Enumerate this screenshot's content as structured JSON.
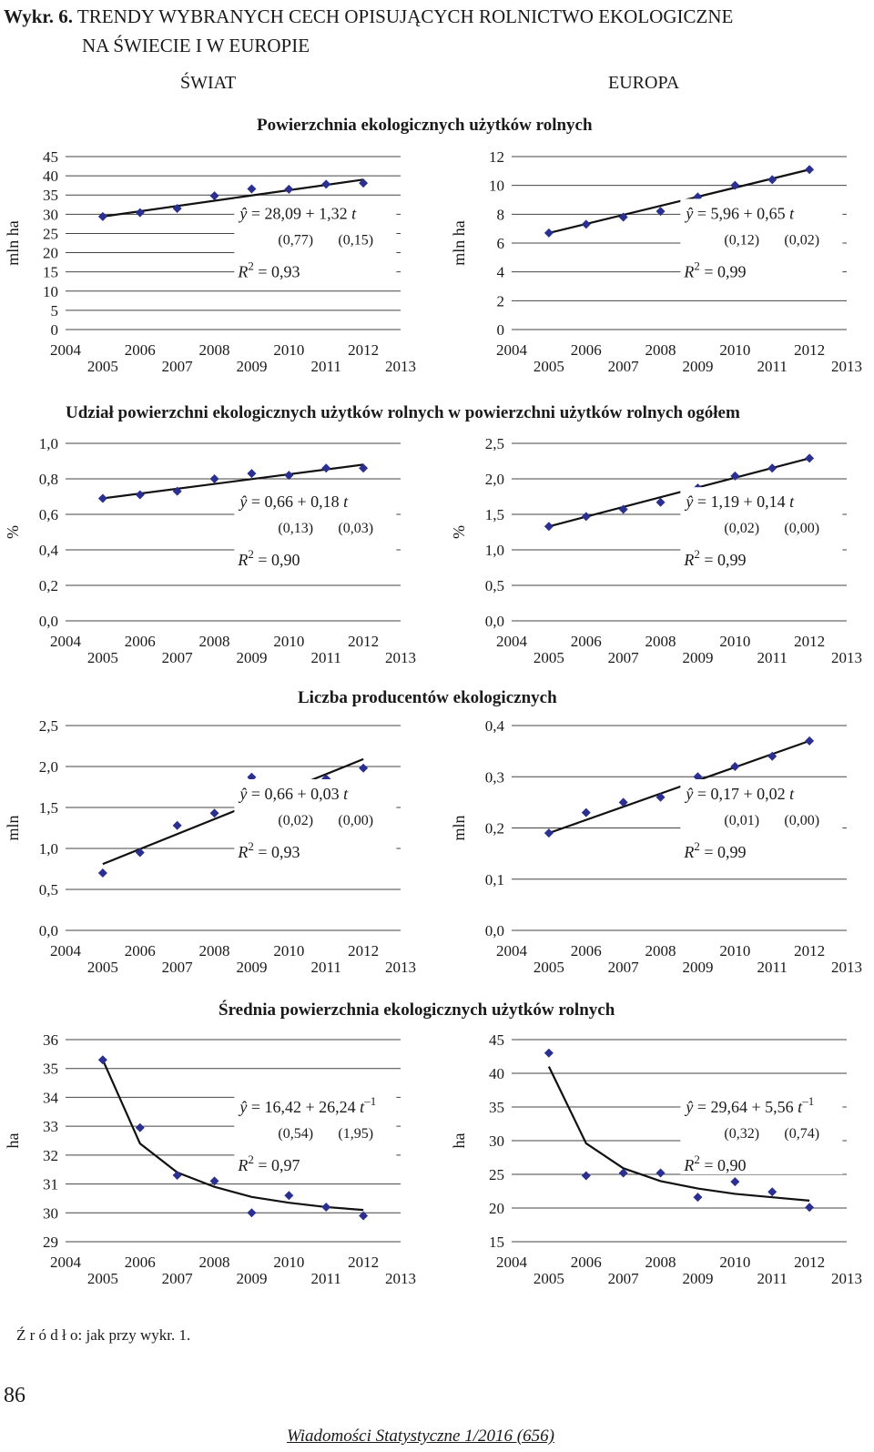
{
  "figure": {
    "label": "Wykr. 6.",
    "title_line1": "TRENDY WYBRANYCH CECH OPISUJĄCYCH ROLNICTWO EKOLOGICZNE",
    "title_line2": "NA ŚWIECIE I W EUROPIE"
  },
  "regions": {
    "world": "ŚWIAT",
    "europe": "EUROPA"
  },
  "sections": [
    "Powierzchnia ekologicznych użytków rolnych",
    "Udział powierzchni ekologicznych użytków rolnych w powierzchni użytków rolnych ogółem",
    "Liczba producentów ekologicznych",
    "Średnia powierzchnia ekologicznych użytków rolnych"
  ],
  "source_note": "Ź r ó d ł o: jak przy wykr. 1.",
  "page_number": "86",
  "journal": "Wiadomości Statystyczne 1/2016 (656)",
  "colors": {
    "marker": "#2b2f8f",
    "line": "#111111",
    "grid": "#444444"
  },
  "chart_data": [
    {
      "id": "area_world",
      "type": "scatter",
      "trend": "linear",
      "ylabel": "mln ha",
      "ylim": [
        0,
        45
      ],
      "yticks": [
        0,
        5,
        10,
        15,
        20,
        25,
        30,
        35,
        40,
        45
      ],
      "ytick_labels": [
        "0",
        "5",
        "10",
        "15",
        "20",
        "25",
        "30",
        "35",
        "40",
        "45"
      ],
      "x": [
        2005,
        2006,
        2007,
        2008,
        2009,
        2010,
        2011,
        2012
      ],
      "values": [
        29.4,
        30.4,
        31.5,
        34.8,
        36.6,
        36.5,
        37.8,
        38.1
      ],
      "trend_values": [
        29.4,
        39.0
      ],
      "equation": {
        "y": "= 28,09 + 1,32",
        "var": "t",
        "exp": "",
        "se1": "(0,77)",
        "se2": "(0,15)",
        "r2": "= 0,93"
      },
      "xlabels_top": [
        "2004",
        "2006",
        "2008",
        "2010",
        "2012"
      ],
      "xlabels_bottom": [
        "2005",
        "2007",
        "2009",
        "2011",
        "2013"
      ]
    },
    {
      "id": "area_europe",
      "type": "scatter",
      "trend": "linear",
      "ylabel": "mln ha",
      "ylim": [
        0,
        12
      ],
      "yticks": [
        0,
        2,
        4,
        6,
        8,
        10,
        12
      ],
      "ytick_labels": [
        "0",
        "2",
        "4",
        "6",
        "8",
        "10",
        "12"
      ],
      "x": [
        2005,
        2006,
        2007,
        2008,
        2009,
        2010,
        2011,
        2012
      ],
      "values": [
        6.7,
        7.3,
        7.8,
        8.2,
        9.2,
        10.0,
        10.4,
        11.1
      ],
      "trend_values": [
        6.7,
        11.1
      ],
      "equation": {
        "y": "= 5,96 + 0,65",
        "var": "t",
        "exp": "",
        "se1": "(0,12)",
        "se2": "(0,02)",
        "r2": "= 0,99"
      },
      "xlabels_top": [
        "2004",
        "2006",
        "2008",
        "2010",
        "2012"
      ],
      "xlabels_bottom": [
        "2005",
        "2007",
        "2009",
        "2011",
        "2013"
      ]
    },
    {
      "id": "share_world",
      "type": "scatter",
      "trend": "linear",
      "ylabel": "%",
      "ylim": [
        0,
        1.0
      ],
      "yticks": [
        0,
        0.2,
        0.4,
        0.6,
        0.8,
        1.0
      ],
      "ytick_labels": [
        "0,0",
        "0,2",
        "0,4",
        "0,6",
        "0,8",
        "1,0"
      ],
      "x": [
        2005,
        2006,
        2007,
        2008,
        2009,
        2010,
        2011,
        2012
      ],
      "values": [
        0.69,
        0.71,
        0.73,
        0.8,
        0.83,
        0.82,
        0.86,
        0.86
      ],
      "trend_values": [
        0.69,
        0.88
      ],
      "equation": {
        "y": "= 0,66 + 0,18",
        "var": "t",
        "exp": "",
        "se1": "(0,13)",
        "se2": "(0,03)",
        "r2": "= 0,90"
      },
      "xlabels_top": [
        "2004",
        "2006",
        "2008",
        "2010",
        "2012"
      ],
      "xlabels_bottom": [
        "2005",
        "2007",
        "2009",
        "2011",
        "2013"
      ]
    },
    {
      "id": "share_europe",
      "type": "scatter",
      "trend": "linear",
      "ylabel": "%",
      "ylim": [
        0,
        2.5
      ],
      "yticks": [
        0,
        0.5,
        1.0,
        1.5,
        2.0,
        2.5
      ],
      "ytick_labels": [
        "0,0",
        "0,5",
        "1,0",
        "1,5",
        "2,0",
        "2,5"
      ],
      "x": [
        2005,
        2006,
        2007,
        2008,
        2009,
        2010,
        2011,
        2012
      ],
      "values": [
        1.33,
        1.47,
        1.57,
        1.67,
        1.87,
        2.04,
        2.15,
        2.29
      ],
      "trend_values": [
        1.33,
        2.29
      ],
      "equation": {
        "y": "= 1,19 + 0,14",
        "var": "t",
        "exp": "",
        "se1": "(0,02)",
        "se2": "(0,00)",
        "r2": "= 0,99"
      },
      "xlabels_top": [
        "2004",
        "2006",
        "2008",
        "2010",
        "2012"
      ],
      "xlabels_bottom": [
        "2005",
        "2007",
        "2009",
        "2011",
        "2013"
      ]
    },
    {
      "id": "producers_world",
      "type": "scatter",
      "trend": "linear",
      "ylabel": "mln",
      "ylim": [
        0,
        2.5
      ],
      "yticks": [
        0,
        0.5,
        1.0,
        1.5,
        2.0,
        2.5
      ],
      "ytick_labels": [
        "0,0",
        "0,5",
        "1,0",
        "1,5",
        "2,0",
        "2,5"
      ],
      "x": [
        2005,
        2006,
        2007,
        2008,
        2009,
        2010,
        2011,
        2012
      ],
      "values": [
        0.7,
        0.95,
        1.28,
        1.43,
        1.87,
        1.63,
        1.85,
        1.98
      ],
      "trend_values": [
        0.81,
        2.09
      ],
      "equation": {
        "y": "= 0,66 + 0,03",
        "var": "t",
        "exp": "",
        "se1": "(0,02)",
        "se2": "(0,00)",
        "r2": "= 0,93"
      },
      "xlabels_top": [
        "2004",
        "2006",
        "2008",
        "2010",
        "2012"
      ],
      "xlabels_bottom": [
        "2005",
        "2007",
        "2009",
        "2011",
        "2013"
      ]
    },
    {
      "id": "producers_europe",
      "type": "scatter",
      "trend": "linear",
      "ylabel": "mln",
      "ylim": [
        0,
        0.4
      ],
      "yticks": [
        0,
        0.1,
        0.2,
        0.3,
        0.4
      ],
      "ytick_labels": [
        "0,0",
        "0,1",
        "0,2",
        "0,3",
        "0,4"
      ],
      "x": [
        2005,
        2006,
        2007,
        2008,
        2009,
        2010,
        2011,
        2012
      ],
      "values": [
        0.19,
        0.23,
        0.25,
        0.26,
        0.3,
        0.32,
        0.34,
        0.37
      ],
      "trend_values": [
        0.19,
        0.37
      ],
      "equation": {
        "y": "= 0,17 + 0,02",
        "var": "t",
        "exp": "",
        "se1": "(0,01)",
        "se2": "(0,00)",
        "r2": "= 0,99"
      },
      "xlabels_top": [
        "2004",
        "2006",
        "2008",
        "2010",
        "2012"
      ],
      "xlabels_bottom": [
        "2005",
        "2007",
        "2009",
        "2011",
        "2013"
      ]
    },
    {
      "id": "avg_area_world",
      "type": "scatter",
      "trend": "reciprocal",
      "ylabel": "ha",
      "ylim": [
        29,
        36
      ],
      "yticks": [
        29,
        30,
        31,
        32,
        33,
        34,
        35,
        36
      ],
      "ytick_labels": [
        "29",
        "30",
        "31",
        "32",
        "33",
        "34",
        "35",
        "36"
      ],
      "x": [
        2005,
        2006,
        2007,
        2008,
        2009,
        2010,
        2011,
        2012
      ],
      "values": [
        35.3,
        32.95,
        31.3,
        31.1,
        30.0,
        30.6,
        30.2,
        29.9
      ],
      "trend_values": [
        35.3,
        32.4,
        31.4,
        30.9,
        30.55,
        30.35,
        30.2,
        30.1
      ],
      "equation": {
        "y": "= 16,42 + 26,24",
        "var": "t",
        "exp": "–1",
        "se1": "(0,54)",
        "se2": "(1,95)",
        "r2": "= 0,97"
      },
      "xlabels_top": [
        "2004",
        "2006",
        "2008",
        "2010",
        "2012"
      ],
      "xlabels_bottom": [
        "2005",
        "2007",
        "2009",
        "2011",
        "2013"
      ]
    },
    {
      "id": "avg_area_europe",
      "type": "scatter",
      "trend": "reciprocal",
      "ylabel": "ha",
      "ylim": [
        15,
        45
      ],
      "yticks": [
        15,
        20,
        25,
        30,
        35,
        40,
        45
      ],
      "ytick_labels": [
        "15",
        "20",
        "25",
        "30",
        "35",
        "40",
        "45"
      ],
      "x": [
        2005,
        2006,
        2007,
        2008,
        2009,
        2010,
        2011,
        2012
      ],
      "values": [
        43.0,
        24.8,
        25.2,
        25.2,
        21.6,
        23.9,
        22.4,
        20.1
      ],
      "trend_values": [
        41.0,
        29.6,
        25.9,
        24.0,
        22.9,
        22.1,
        21.6,
        21.1
      ],
      "equation": {
        "y": "= 29,64 + 5,56",
        "var": "t",
        "exp": "–1",
        "se1": "(0,32)",
        "se2": "(0,74)",
        "r2": "= 0,90"
      },
      "xlabels_top": [
        "2004",
        "2006",
        "2008",
        "2010",
        "2012"
      ],
      "xlabels_bottom": [
        "2005",
        "2007",
        "2009",
        "2011",
        "2013"
      ]
    }
  ]
}
